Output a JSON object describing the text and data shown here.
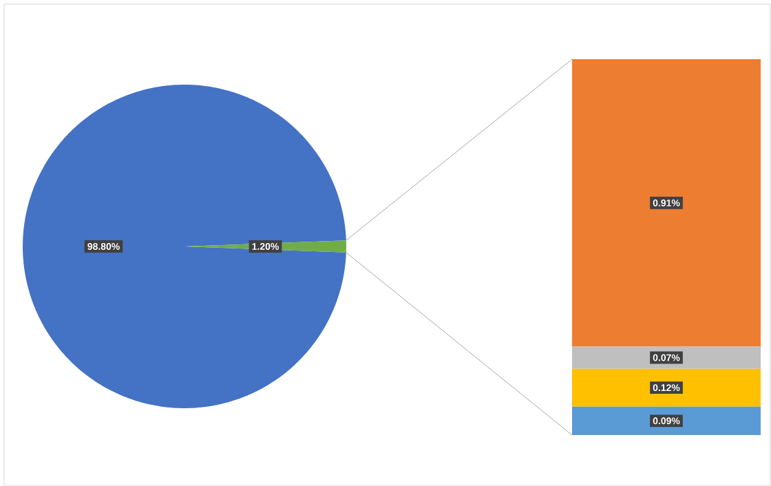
{
  "chart_data": [
    {
      "type": "pie",
      "categories": [
        null,
        null
      ],
      "values": [
        98.8,
        1.2
      ],
      "colors": [
        "#4472c4",
        "#70ad47"
      ],
      "value_labels": [
        "98.80%",
        "1.20%"
      ]
    },
    {
      "type": "bar",
      "stacked": true,
      "categories": [
        null
      ],
      "series": [
        {
          "color": "#5b9bd5",
          "values": [
            0.09
          ],
          "value_labels": [
            "0.09%"
          ]
        },
        {
          "color": "#ffc000",
          "values": [
            0.12
          ],
          "value_labels": [
            "0.12%"
          ]
        },
        {
          "color": "#bfbfbf",
          "values": [
            0.07
          ],
          "value_labels": [
            "0.07%"
          ]
        },
        {
          "color": "#ed7d31",
          "values": [
            0.91
          ],
          "value_labels": [
            "0.91%"
          ]
        }
      ]
    }
  ]
}
